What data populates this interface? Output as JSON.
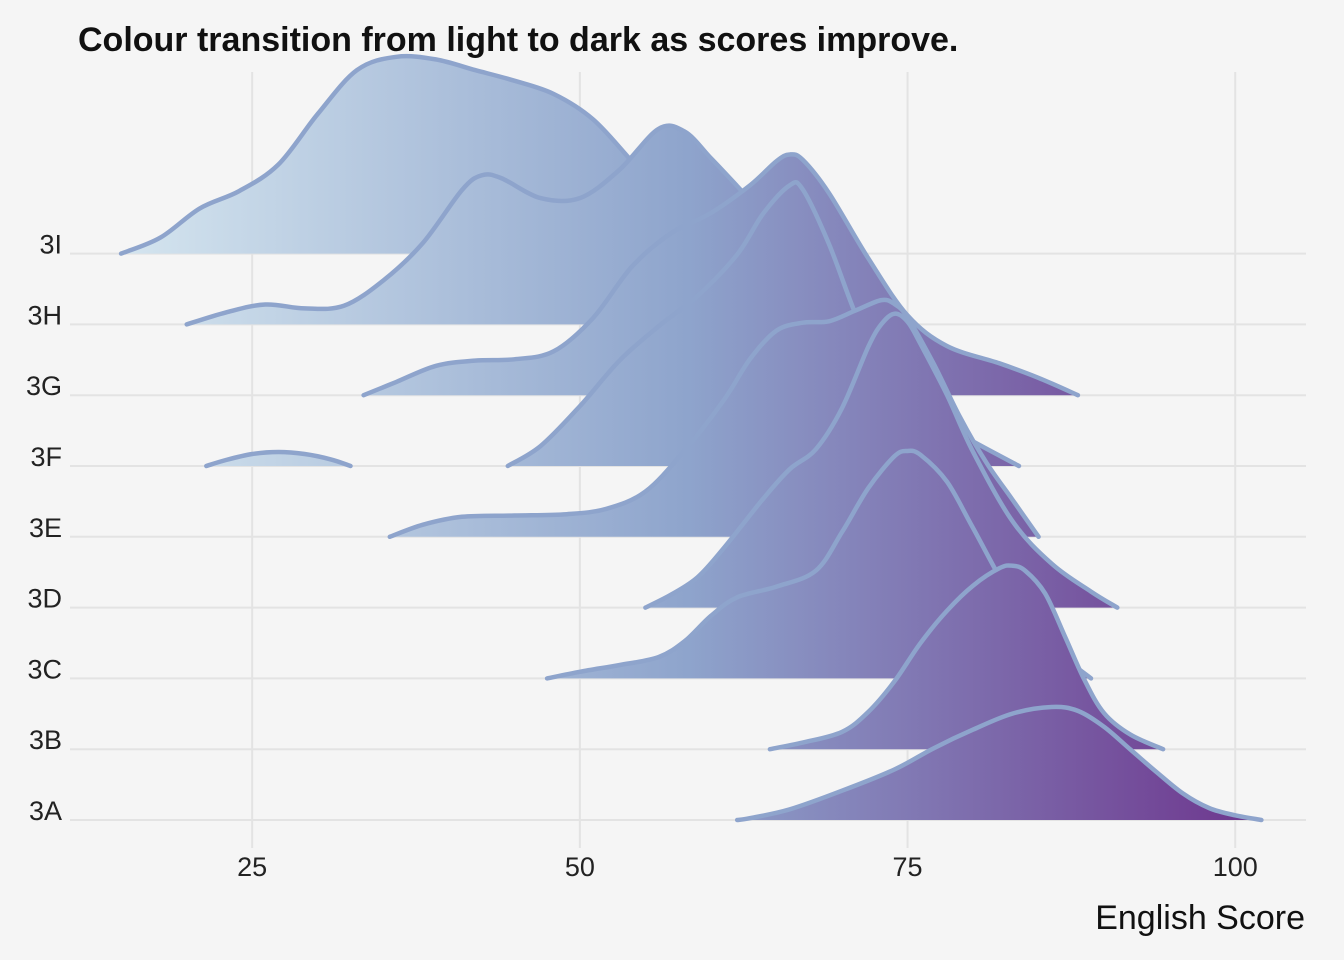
{
  "chart_data": {
    "type": "ridgeline",
    "title": "Colour transition from light to dark as scores improve.",
    "xlabel": "English Score",
    "ylabel": "",
    "xlim": [
      11.1,
      105.4
    ],
    "xticks": [
      25,
      50,
      75,
      100
    ],
    "grid": true,
    "legend": "none",
    "colors": {
      "background": "#f5f5f5",
      "outline": "#8ea4cc",
      "gradient_low": "#dbebf2",
      "gradient_mid": "#8ea4cc",
      "gradient_high": "#6a2c88"
    },
    "categories": [
      "3A",
      "3B",
      "3C",
      "3D",
      "3E",
      "3F",
      "3G",
      "3H",
      "3I"
    ],
    "series": [
      {
        "label": "3A",
        "points": [
          [
            62,
            0
          ],
          [
            63,
            0.14
          ],
          [
            66,
            0.8
          ],
          [
            70,
            2.2
          ],
          [
            74,
            3.8
          ],
          [
            77,
            5.4
          ],
          [
            80,
            6.8
          ],
          [
            83,
            8.0
          ],
          [
            86,
            8.5
          ],
          [
            88,
            8.2
          ],
          [
            90,
            7.0
          ],
          [
            92,
            5.3
          ],
          [
            94,
            3.6
          ],
          [
            96,
            2.0
          ],
          [
            98,
            0.9
          ],
          [
            100,
            0.35
          ],
          [
            102,
            0
          ]
        ]
      },
      {
        "label": "3B",
        "points": [
          [
            64.5,
            0
          ],
          [
            67,
            0.5
          ],
          [
            70,
            1.3
          ],
          [
            72,
            2.8
          ],
          [
            74,
            5.1
          ],
          [
            76,
            8.0
          ],
          [
            78,
            10.4
          ],
          [
            80,
            12.3
          ],
          [
            82,
            13.6
          ],
          [
            83,
            13.8
          ],
          [
            84,
            13.4
          ],
          [
            85.5,
            11.7
          ],
          [
            87,
            8.5
          ],
          [
            88.5,
            5.2
          ],
          [
            90,
            2.7
          ],
          [
            92,
            1.1
          ],
          [
            94.5,
            0
          ]
        ]
      },
      {
        "label": "3C",
        "points": [
          [
            47.5,
            0
          ],
          [
            50,
            0.5
          ],
          [
            53,
            1.0
          ],
          [
            56,
            1.6
          ],
          [
            58,
            2.8
          ],
          [
            60,
            4.7
          ],
          [
            62,
            6.1
          ],
          [
            65,
            6.9
          ],
          [
            68,
            8.1
          ],
          [
            70,
            11.0
          ],
          [
            72,
            14.3
          ],
          [
            74,
            16.7
          ],
          [
            75,
            17.1
          ],
          [
            76,
            16.8
          ],
          [
            78,
            14.8
          ],
          [
            80,
            11.3
          ],
          [
            83,
            6.0
          ],
          [
            86,
            2.4
          ],
          [
            89,
            0
          ]
        ]
      },
      {
        "label": "3D",
        "points": [
          [
            55,
            0
          ],
          [
            57,
            1.0
          ],
          [
            59,
            2.3
          ],
          [
            61,
            4.5
          ],
          [
            64,
            8.2
          ],
          [
            66,
            10.4
          ],
          [
            68,
            11.9
          ],
          [
            70,
            15.0
          ],
          [
            72,
            19.6
          ],
          [
            73,
            21.3
          ],
          [
            74,
            22.1
          ],
          [
            75,
            21.5
          ],
          [
            76,
            19.8
          ],
          [
            78,
            16.0
          ],
          [
            80,
            11.7
          ],
          [
            83,
            6.5
          ],
          [
            86,
            3.3
          ],
          [
            89,
            1.2
          ],
          [
            91,
            0
          ]
        ]
      },
      {
        "label": "3E",
        "points": [
          [
            35.5,
            0
          ],
          [
            38,
            0.9
          ],
          [
            41,
            1.5
          ],
          [
            45,
            1.6
          ],
          [
            49,
            1.7
          ],
          [
            52,
            2.1
          ],
          [
            55,
            3.4
          ],
          [
            58,
            6.5
          ],
          [
            61,
            10.3
          ],
          [
            63,
            13.4
          ],
          [
            65,
            15.5
          ],
          [
            67,
            16.1
          ],
          [
            69,
            16.2
          ],
          [
            71,
            17.0
          ],
          [
            73,
            17.8
          ],
          [
            74,
            17.5
          ],
          [
            75,
            16.5
          ],
          [
            77,
            13.0
          ],
          [
            79,
            9.0
          ],
          [
            81,
            5.6
          ],
          [
            83,
            2.8
          ],
          [
            85,
            0
          ]
        ]
      },
      {
        "label": "3F",
        "points": [
          [
            21.5,
            0
          ],
          [
            23,
            0.45
          ],
          [
            25,
            0.9
          ],
          [
            27,
            1.05
          ],
          [
            29,
            0.9
          ],
          [
            31,
            0.5
          ],
          [
            32.5,
            0
          ],
          [
            32.6,
            null
          ],
          [
            44.5,
            0
          ],
          [
            47,
            1.5
          ],
          [
            50,
            4.5
          ],
          [
            53,
            7.9
          ],
          [
            56,
            10.5
          ],
          [
            59,
            12.8
          ],
          [
            62,
            15.9
          ],
          [
            64,
            19.0
          ],
          [
            66,
            21.1
          ],
          [
            67,
            20.8
          ],
          [
            69,
            16.7
          ],
          [
            71,
            11.5
          ],
          [
            73,
            7.2
          ],
          [
            76,
            4.4
          ],
          [
            79,
            2.4
          ],
          [
            83.5,
            0
          ]
        ]
      },
      {
        "label": "3G",
        "points": [
          [
            33.5,
            0
          ],
          [
            36,
            1.0
          ],
          [
            39,
            2.2
          ],
          [
            42,
            2.6
          ],
          [
            45,
            2.7
          ],
          [
            48,
            3.3
          ],
          [
            51,
            5.8
          ],
          [
            54,
            9.7
          ],
          [
            57,
            12.2
          ],
          [
            60,
            13.7
          ],
          [
            63,
            15.8
          ],
          [
            65,
            17.6
          ],
          [
            66,
            18.1
          ],
          [
            67,
            17.7
          ],
          [
            69,
            15.2
          ],
          [
            72,
            10.3
          ],
          [
            75,
            6.0
          ],
          [
            78,
            3.7
          ],
          [
            82,
            2.4
          ],
          [
            85,
            1.3
          ],
          [
            88,
            0
          ]
        ]
      },
      {
        "label": "3H",
        "points": [
          [
            20,
            0
          ],
          [
            23,
            0.9
          ],
          [
            26,
            1.5
          ],
          [
            29,
            1.2
          ],
          [
            32,
            1.4
          ],
          [
            35,
            3.3
          ],
          [
            38,
            6.1
          ],
          [
            41,
            10.1
          ],
          [
            42.5,
            11.2
          ],
          [
            44,
            11.0
          ],
          [
            47,
            9.5
          ],
          [
            50,
            9.5
          ],
          [
            53,
            11.6
          ],
          [
            56,
            14.7
          ],
          [
            58,
            14.5
          ],
          [
            60,
            12.5
          ],
          [
            62,
            10.4
          ],
          [
            65,
            7.2
          ],
          [
            68,
            3.6
          ],
          [
            71,
            1.1
          ],
          [
            74,
            0
          ]
        ]
      },
      {
        "label": "3I",
        "points": [
          [
            15,
            0
          ],
          [
            18,
            1.2
          ],
          [
            21,
            3.4
          ],
          [
            24,
            4.7
          ],
          [
            27,
            6.7
          ],
          [
            30,
            10.5
          ],
          [
            33,
            13.8
          ],
          [
            36,
            14.8
          ],
          [
            39,
            14.6
          ],
          [
            42,
            13.8
          ],
          [
            45,
            13.0
          ],
          [
            48,
            12.0
          ],
          [
            51,
            10.1
          ],
          [
            54,
            6.9
          ],
          [
            57,
            3.6
          ],
          [
            59,
            1.9
          ],
          [
            61.5,
            0
          ]
        ]
      }
    ]
  }
}
